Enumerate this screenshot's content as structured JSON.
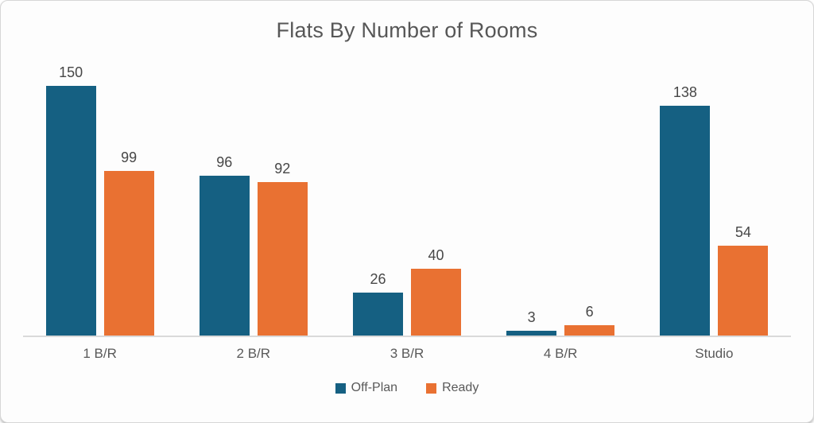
{
  "chart_data": {
    "type": "bar",
    "title": "Flats By Number of Rooms",
    "categories": [
      "1 B/R",
      "2 B/R",
      "3 B/R",
      "4 B/R",
      "Studio"
    ],
    "series": [
      {
        "name": "Off-Plan",
        "color": "#156082",
        "values": [
          150,
          96,
          26,
          3,
          138
        ]
      },
      {
        "name": "Ready",
        "color": "#E97132",
        "values": [
          99,
          92,
          40,
          6,
          54
        ]
      }
    ],
    "ylim": [
      0,
      150
    ],
    "xlabel": "",
    "ylabel": "",
    "grid": false,
    "value_labels": true,
    "legend_position": "bottom",
    "axis_line_color": "#dadada"
  },
  "colors": {
    "title_text": "#575757",
    "value_text": "#474747",
    "category_text": "#595959",
    "card_background": "#fdfdfd",
    "card_border": "#d6d6d6"
  }
}
